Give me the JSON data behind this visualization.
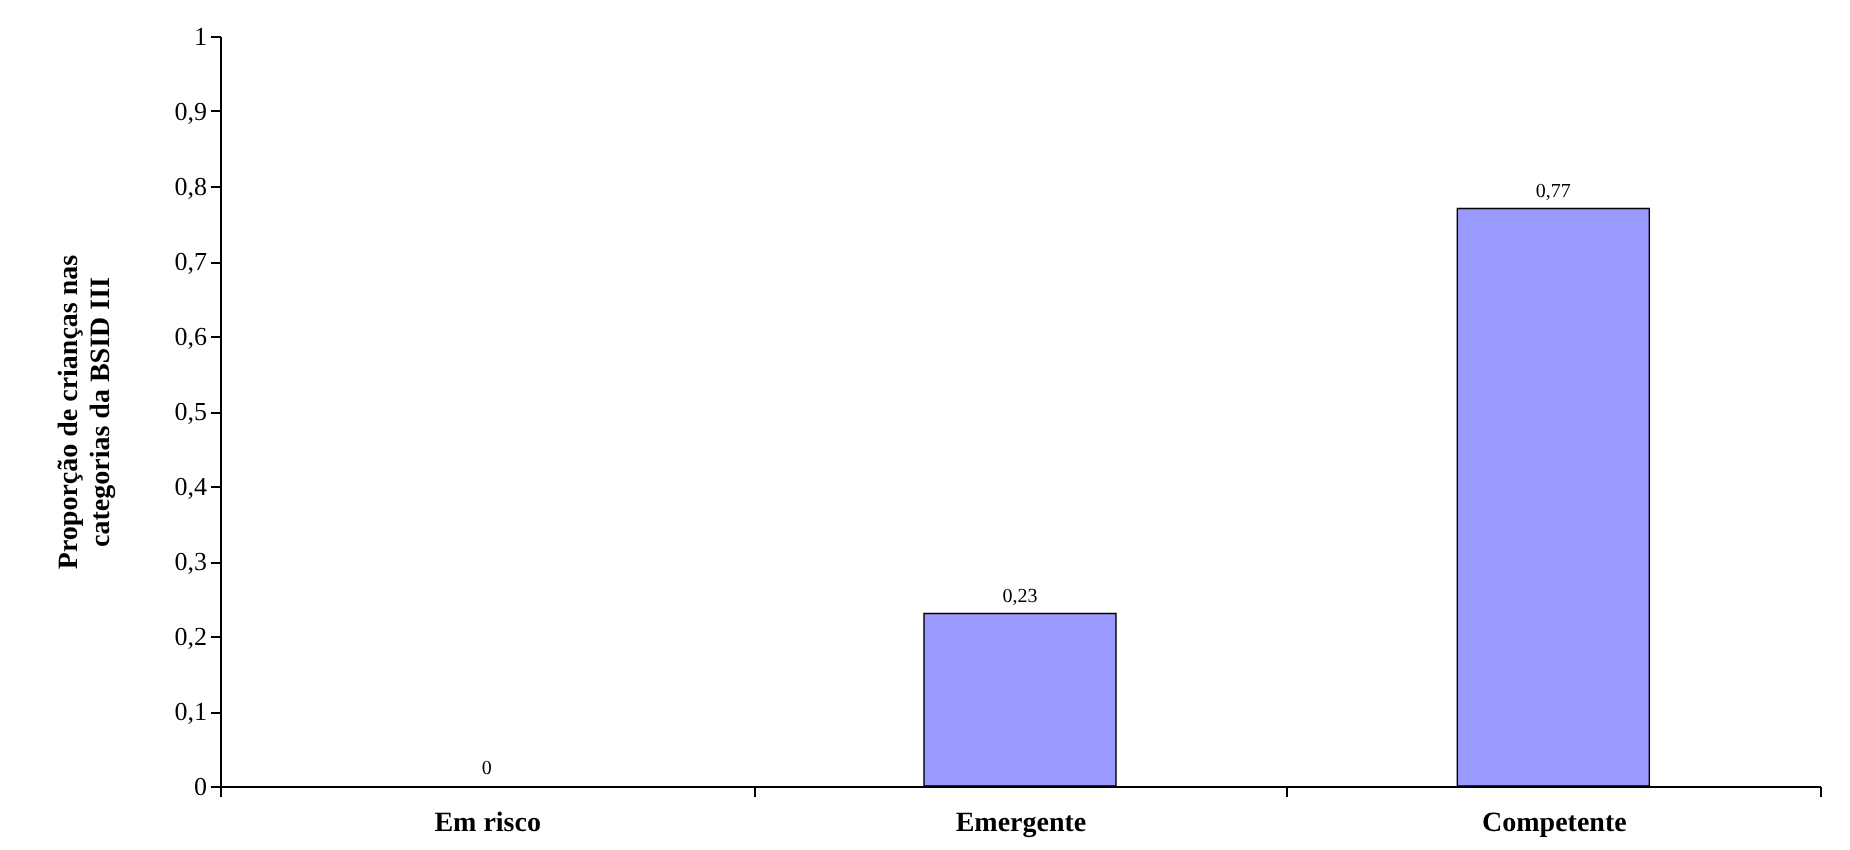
{
  "chart_data": {
    "type": "bar",
    "ylabel": "Proporção de crianças nas categorias da BSID III",
    "categories": [
      "Em risco",
      "Emergente",
      "Competente"
    ],
    "values": [
      0,
      0.23,
      0.77
    ],
    "value_labels": [
      "0",
      "0,23",
      "0,77"
    ],
    "color": "#9999ff",
    "ylim": [
      0,
      1
    ],
    "yticks": [
      {
        "value": 0,
        "label": "0"
      },
      {
        "value": 0.1,
        "label": "0,1"
      },
      {
        "value": 0.2,
        "label": "0,2"
      },
      {
        "value": 0.3,
        "label": "0,3"
      },
      {
        "value": 0.4,
        "label": "0,4"
      },
      {
        "value": 0.5,
        "label": "0,5"
      },
      {
        "value": 0.6,
        "label": "0,6"
      },
      {
        "value": 0.7,
        "label": "0,7"
      },
      {
        "value": 0.8,
        "label": "0,8"
      },
      {
        "value": 0.9,
        "label": "0,9"
      },
      {
        "value": 1,
        "label": "1"
      }
    ]
  }
}
